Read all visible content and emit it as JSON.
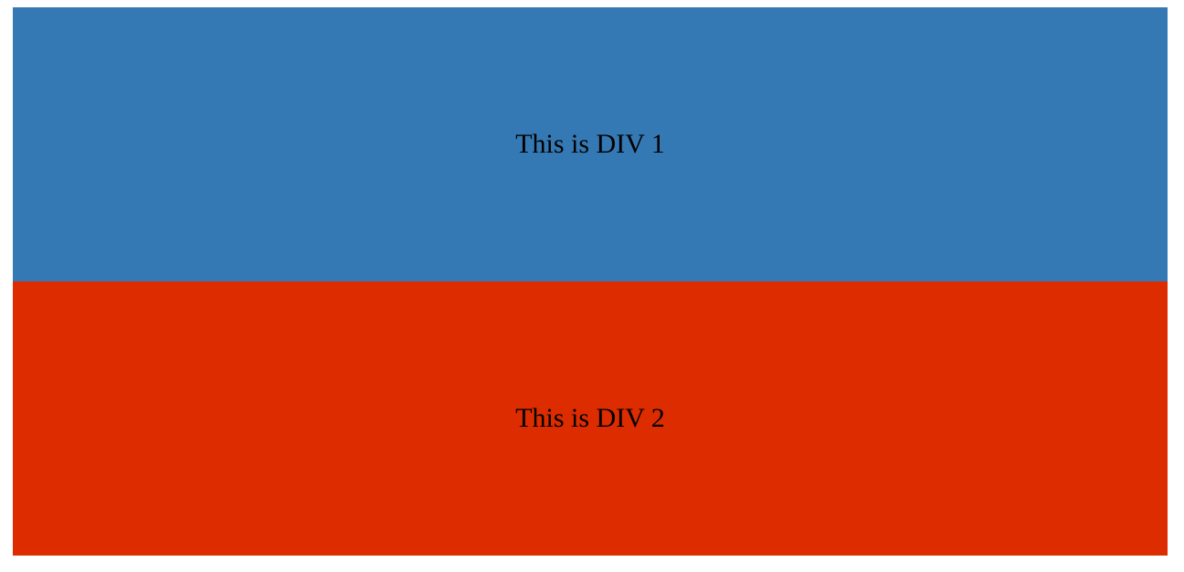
{
  "blocks": [
    {
      "text": "This is DIV 1",
      "color": "#3579B4"
    },
    {
      "text": "This is DIV 2",
      "color": "#DC2C00"
    }
  ]
}
